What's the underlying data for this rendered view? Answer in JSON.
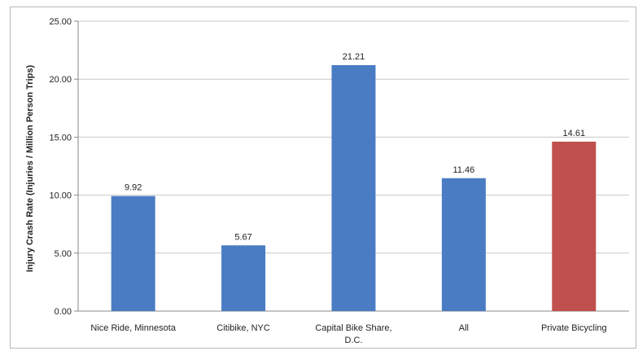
{
  "chart_data": {
    "type": "bar",
    "title": "",
    "xlabel": "",
    "ylabel": "Injury Crash Rate (Injuries / Million Person Trips)",
    "categories": [
      [
        "Nice Ride, Minnesota"
      ],
      [
        "Citibike, NYC"
      ],
      [
        "Capital Bike Share,",
        "D.C."
      ],
      [
        "All"
      ],
      [
        "Private Bicycling"
      ]
    ],
    "values": [
      9.92,
      5.67,
      21.21,
      11.46,
      14.61
    ],
    "value_labels": [
      "9.92",
      "5.67",
      "21.21",
      "11.46",
      "14.61"
    ],
    "bar_colors": [
      "#4a7cc4",
      "#4a7cc4",
      "#4a7cc4",
      "#4a7cc4",
      "#c0504d"
    ],
    "ylim": [
      0,
      25
    ],
    "yticks": [
      0,
      5,
      10,
      15,
      20,
      25
    ],
    "ytick_labels": [
      "0.00",
      "5.00",
      "10.00",
      "15.00",
      "20.00",
      "25.00"
    ],
    "grid": true,
    "legend": "none",
    "gridline_color": "#c8c8c8",
    "axis_color": "#8a8a8a"
  }
}
